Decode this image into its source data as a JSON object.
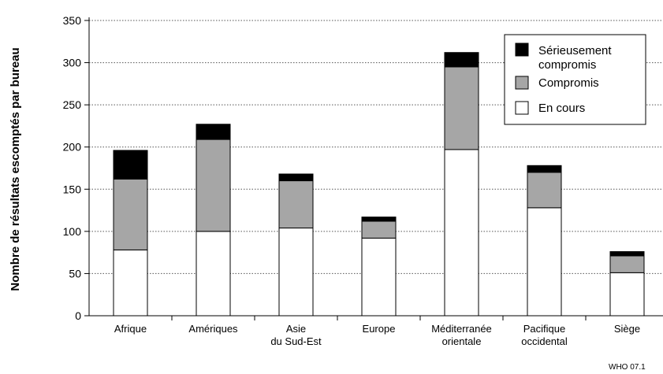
{
  "chart_data": {
    "type": "bar",
    "stacked": true,
    "categories": [
      [
        "Afrique"
      ],
      [
        "Amériques"
      ],
      [
        "Asie",
        "du Sud-Est"
      ],
      [
        "Europe"
      ],
      [
        "Méditerranée",
        "orientale"
      ],
      [
        "Pacifique",
        "occidental"
      ],
      [
        "Siège"
      ]
    ],
    "series": [
      {
        "name": "En cours",
        "color": "#ffffff",
        "values": [
          78,
          100,
          104,
          92,
          197,
          128,
          51
        ]
      },
      {
        "name": "Compromis",
        "color": "#a6a6a6",
        "values": [
          84,
          109,
          56,
          20,
          98,
          42,
          20
        ]
      },
      {
        "name": "Sérieusement compromis",
        "color": "#000000",
        "values": [
          34,
          18,
          8,
          5,
          17,
          8,
          5
        ]
      }
    ],
    "legend": {
      "position": "top-right",
      "entries": [
        {
          "label_lines": [
            "Sérieusement",
            "compromis"
          ],
          "color": "#000000"
        },
        {
          "label_lines": [
            "Compromis"
          ],
          "color": "#a6a6a6"
        },
        {
          "label_lines": [
            "En cours"
          ],
          "color": "#ffffff"
        }
      ]
    },
    "ylabel": "Nombre de résultats escomptés par bureau",
    "xlabel": "",
    "ylim": [
      0,
      350
    ],
    "yticks": [
      0,
      50,
      100,
      150,
      200,
      250,
      300,
      350
    ],
    "grid": "horizontal dotted",
    "source_note": "WHO 07.1"
  }
}
